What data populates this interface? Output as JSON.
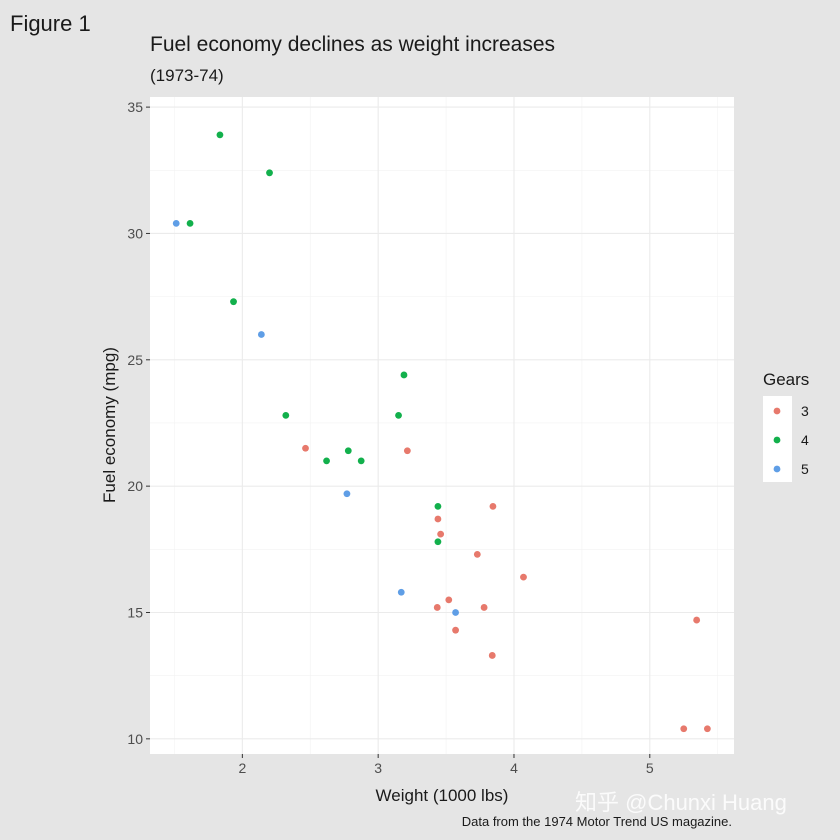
{
  "figure_tag": "Figure 1",
  "watermark": "知乎 @Chunxi Huang",
  "chart_data": {
    "type": "scatter",
    "title": "Fuel economy declines as weight increases",
    "subtitle": "(1973-74)",
    "caption": "Data from the 1974 Motor Trend US magazine.",
    "xlabel": "Weight (1000 lbs)",
    "ylabel": "Fuel economy (mpg)",
    "xlim": [
      1.32,
      5.62
    ],
    "ylim": [
      9.4,
      35.4
    ],
    "xticks": [
      2,
      3,
      4,
      5
    ],
    "yticks": [
      10,
      15,
      20,
      25,
      30,
      35
    ],
    "grid": true,
    "legend": {
      "title": "Gears",
      "placement": "right"
    },
    "series": [
      {
        "name": "3",
        "color": "#e7796c",
        "points": [
          [
            2.465,
            21.5
          ],
          [
            3.215,
            21.4
          ],
          [
            3.44,
            18.7
          ],
          [
            3.46,
            18.1
          ],
          [
            3.57,
            14.3
          ],
          [
            4.07,
            16.4
          ],
          [
            3.73,
            17.3
          ],
          [
            3.78,
            15.2
          ],
          [
            5.25,
            10.4
          ],
          [
            5.424,
            10.4
          ],
          [
            5.345,
            14.7
          ],
          [
            3.52,
            15.5
          ],
          [
            3.435,
            15.2
          ],
          [
            3.84,
            13.3
          ],
          [
            3.845,
            19.2
          ]
        ]
      },
      {
        "name": "4",
        "color": "#12b04c",
        "points": [
          [
            2.62,
            21.0
          ],
          [
            2.875,
            21.0
          ],
          [
            2.32,
            22.8
          ],
          [
            3.19,
            24.4
          ],
          [
            3.15,
            22.8
          ],
          [
            3.44,
            19.2
          ],
          [
            3.44,
            17.8
          ],
          [
            2.2,
            32.4
          ],
          [
            1.615,
            30.4
          ],
          [
            1.835,
            33.9
          ],
          [
            1.935,
            27.3
          ],
          [
            2.78,
            21.4
          ]
        ]
      },
      {
        "name": "5",
        "color": "#5f9ee6",
        "points": [
          [
            2.14,
            26.0
          ],
          [
            1.513,
            30.4
          ],
          [
            3.17,
            15.8
          ],
          [
            2.77,
            19.7
          ],
          [
            3.57,
            15.0
          ]
        ]
      }
    ]
  }
}
